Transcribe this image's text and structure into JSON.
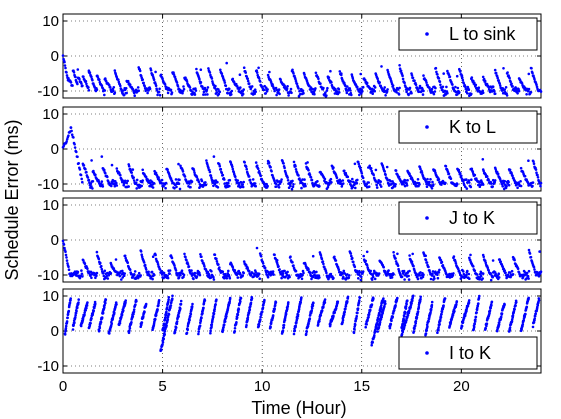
{
  "chart_data": {
    "type": "scatter",
    "ylabel": "Schedule Error (ms)",
    "xlabel": "Time (Hour)",
    "xlim": [
      0,
      24
    ],
    "x_ticks": [
      0,
      5,
      10,
      15,
      20
    ],
    "ylim": [
      -12,
      12
    ],
    "y_ticks": [
      10,
      0,
      -10
    ],
    "grid": true,
    "marker_color": "#0000ff",
    "legend_placement": "top-right",
    "panels": [
      {
        "legend": "L to sink",
        "legend_placement": "top-right",
        "pattern": "sawtooth-down",
        "reset_times": [
          0.0,
          0.25,
          0.5,
          0.75,
          1.0,
          1.3,
          1.7,
          2.1,
          2.6,
          3.2,
          3.8,
          4.4,
          4.9,
          5.5,
          6.1,
          6.7,
          7.3,
          7.9,
          8.5,
          9.1,
          9.7,
          10.3,
          10.9,
          11.5,
          12.1,
          12.7,
          13.3,
          13.9,
          14.5,
          15.1,
          15.7,
          16.3,
          16.9,
          17.5,
          18.1,
          18.7,
          19.3,
          19.9,
          20.5,
          21.1,
          21.7,
          22.3,
          22.9,
          23.5
        ],
        "start_value": 0,
        "floor_value": -10
      },
      {
        "legend": "K to L",
        "legend_placement": "top-right",
        "pattern": "sawtooth-down",
        "initial_peak": [
          0.4,
          6
        ],
        "reset_times": [
          1.0,
          1.5,
          2.0,
          2.7,
          3.3,
          4.0,
          4.6,
          5.2,
          5.9,
          6.5,
          7.2,
          7.8,
          8.4,
          9.1,
          9.7,
          10.3,
          11.0,
          11.6,
          12.2,
          12.9,
          13.5,
          14.1,
          14.8,
          15.4,
          16.0,
          16.7,
          17.3,
          17.9,
          18.6,
          19.2,
          19.8,
          20.5,
          21.1,
          21.7,
          22.4,
          23.0,
          23.6
        ],
        "start_value": -4,
        "floor_value": -10
      },
      {
        "legend": "J to K",
        "legend_placement": "top-right",
        "pattern": "sawtooth-down",
        "reset_times": [
          0.0,
          1.0,
          1.7,
          2.4,
          3.1,
          3.9,
          4.6,
          5.4,
          6.1,
          6.9,
          7.6,
          8.4,
          9.1,
          9.9,
          10.6,
          11.4,
          12.1,
          12.9,
          13.6,
          14.4,
          15.1,
          15.9,
          16.6,
          17.4,
          18.1,
          18.9,
          19.6,
          20.4,
          21.1,
          21.9,
          22.6,
          23.4
        ],
        "start_value": 0,
        "floor_value": -10
      },
      {
        "legend": "I to K",
        "legend_placement": "bottom-right",
        "pattern": "sawtooth-up",
        "reset_times": [
          0.1,
          0.5,
          0.9,
          1.3,
          1.8,
          2.3,
          2.8,
          3.3,
          3.9,
          4.5,
          5.0,
          5.6,
          6.2,
          6.8,
          7.4,
          8.0,
          8.6,
          9.2,
          9.8,
          10.4,
          11.0,
          11.6,
          12.2,
          12.8,
          13.4,
          14.0,
          14.6,
          15.2,
          15.8,
          16.4,
          17.0,
          17.6,
          18.2,
          18.8,
          19.4,
          20.0,
          20.6,
          21.2,
          21.8,
          22.4,
          23.0,
          23.6
        ],
        "start_value": 0,
        "ceiling_value": 10,
        "dip_points": [
          [
            4.9,
            -6
          ],
          [
            15.5,
            -4
          ],
          [
            17.0,
            -1
          ]
        ]
      }
    ]
  }
}
